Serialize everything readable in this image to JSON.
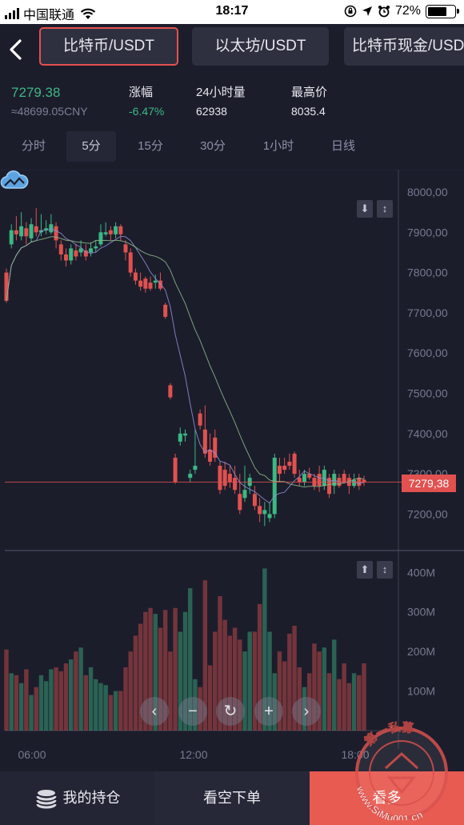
{
  "status_bar": {
    "carrier": "中国联通",
    "time": "18:17",
    "battery": "72%"
  },
  "pairs": [
    {
      "label": "比特币/USDT",
      "active": true
    },
    {
      "label": "以太坊/USDT",
      "active": false
    },
    {
      "label": "比特币现金/USDT",
      "active": false
    }
  ],
  "stats": {
    "price": "7279.38",
    "cny": "≈48699.05CNY",
    "change_label": "涨幅",
    "change_value": "-6.47%",
    "volume_label": "24小时量",
    "volume_value": "62938",
    "high_label": "最高价",
    "high_value": "8035.4"
  },
  "intervals": [
    "分时",
    "5分",
    "15分",
    "30分",
    "1小时",
    "日线"
  ],
  "selected_interval": "5分",
  "chart_data": {
    "type": "candlestick",
    "price_axis": [
      "8000,00",
      "7900,00",
      "7800,00",
      "7700,00",
      "7600,00",
      "7500,00",
      "7400,00",
      "7300,00",
      "7200,00"
    ],
    "volume_axis": [
      "400M",
      "300M",
      "200M",
      "100M"
    ],
    "time_axis": [
      "06:00",
      "12:00",
      "18:00"
    ],
    "current_price_label": "7279,38",
    "ylim": [
      7150,
      8030
    ],
    "candles": [
      [
        7800,
        7730,
        7810,
        7725
      ],
      [
        7870,
        7905,
        7920,
        7860
      ],
      [
        7905,
        7895,
        7940,
        7880
      ],
      [
        7890,
        7915,
        7950,
        7880
      ],
      [
        7910,
        7890,
        7925,
        7870
      ],
      [
        7885,
        7920,
        7935,
        7875
      ],
      [
        7915,
        7900,
        7960,
        7890
      ],
      [
        7900,
        7905,
        7945,
        7890
      ],
      [
        7905,
        7910,
        7930,
        7895
      ],
      [
        7900,
        7920,
        7945,
        7895
      ],
      [
        7915,
        7880,
        7925,
        7860
      ],
      [
        7870,
        7845,
        7880,
        7830
      ],
      [
        7845,
        7830,
        7860,
        7815
      ],
      [
        7830,
        7860,
        7870,
        7820
      ],
      [
        7855,
        7840,
        7870,
        7830
      ],
      [
        7850,
        7860,
        7880,
        7840
      ],
      [
        7855,
        7840,
        7870,
        7830
      ],
      [
        7850,
        7860,
        7875,
        7840
      ],
      [
        7860,
        7865,
        7880,
        7850
      ],
      [
        7870,
        7900,
        7920,
        7865
      ],
      [
        7895,
        7900,
        7925,
        7890
      ],
      [
        7905,
        7895,
        7915,
        7880
      ],
      [
        7895,
        7915,
        7925,
        7885
      ],
      [
        7915,
        7895,
        7920,
        7880
      ],
      [
        7870,
        7850,
        7880,
        7830
      ],
      [
        7850,
        7800,
        7860,
        7790
      ],
      [
        7800,
        7780,
        7810,
        7770
      ],
      [
        7780,
        7765,
        7800,
        7755
      ],
      [
        7785,
        7760,
        7790,
        7750
      ],
      [
        7775,
        7760,
        7790,
        7755
      ],
      [
        7775,
        7780,
        7795,
        7760
      ],
      [
        7780,
        7760,
        7800,
        7755
      ],
      [
        7720,
        7690,
        7725,
        7685
      ],
      [
        7520,
        7490,
        7525,
        7485
      ],
      [
        7340,
        7280,
        7350,
        7275
      ],
      [
        7380,
        7400,
        7415,
        7370
      ],
      [
        7395,
        7400,
        7410,
        7380
      ],
      [
        7290,
        7300,
        7310,
        7280
      ],
      [
        7310,
        7320,
        7410,
        7300
      ],
      [
        7450,
        7420,
        7460,
        7410
      ],
      [
        7410,
        7350,
        7470,
        7340
      ],
      [
        7360,
        7330,
        7400,
        7320
      ],
      [
        7390,
        7340,
        7410,
        7330
      ],
      [
        7320,
        7260,
        7330,
        7250
      ],
      [
        7310,
        7270,
        7330,
        7260
      ],
      [
        7300,
        7280,
        7320,
        7265
      ],
      [
        7290,
        7260,
        7320,
        7250
      ],
      [
        7250,
        7210,
        7300,
        7200
      ],
      [
        7240,
        7260,
        7320,
        7230
      ],
      [
        7270,
        7290,
        7300,
        7250
      ],
      [
        7250,
        7220,
        7270,
        7210
      ],
      [
        7220,
        7200,
        7240,
        7180
      ],
      [
        7200,
        7210,
        7230,
        7170
      ],
      [
        7190,
        7200,
        7230,
        7180
      ],
      [
        7200,
        7340,
        7350,
        7190
      ],
      [
        7320,
        7300,
        7340,
        7280
      ],
      [
        7320,
        7310,
        7340,
        7300
      ],
      [
        7330,
        7320,
        7350,
        7310
      ],
      [
        7350,
        7300,
        7355,
        7290
      ],
      [
        7290,
        7280,
        7310,
        7270
      ],
      [
        7280,
        7300,
        7310,
        7270
      ],
      [
        7300,
        7290,
        7315,
        7285
      ],
      [
        7290,
        7270,
        7300,
        7260
      ],
      [
        7300,
        7270,
        7320,
        7255
      ],
      [
        7270,
        7310,
        7320,
        7260
      ],
      [
        7290,
        7250,
        7300,
        7240
      ],
      [
        7270,
        7300,
        7310,
        7250
      ],
      [
        7290,
        7270,
        7300,
        7265
      ],
      [
        7300,
        7280,
        7310,
        7275
      ],
      [
        7290,
        7270,
        7300,
        7250
      ],
      [
        7270,
        7285,
        7300,
        7265
      ],
      [
        7290,
        7270,
        7300,
        7260
      ],
      [
        7285,
        7279,
        7295,
        7270
      ]
    ],
    "volumes": [
      205,
      145,
      140,
      120,
      155,
      90,
      110,
      140,
      125,
      155,
      160,
      150,
      170,
      180,
      200,
      210,
      140,
      160,
      130,
      120,
      115,
      90,
      100,
      100,
      160,
      200,
      240,
      270,
      300,
      310,
      295,
      260,
      305,
      200,
      310,
      250,
      300,
      360,
      130,
      110,
      380,
      165,
      250,
      340,
      280,
      240,
      260,
      230,
      200,
      250,
      250,
      320,
      410,
      250,
      145,
      200,
      175,
      245,
      265,
      160,
      110,
      145,
      220,
      200,
      210,
      145,
      230,
      130,
      170,
      120,
      145,
      140,
      170
    ]
  },
  "controls": [
    "‹",
    "−",
    "↻",
    "+",
    "›"
  ],
  "bottom_bar": {
    "positions": "我的持仓",
    "short": "看空下单",
    "long": "看多"
  },
  "watermark": {
    "top_text": "第一私募",
    "bottom_text": "www.SiMu001.cn"
  }
}
